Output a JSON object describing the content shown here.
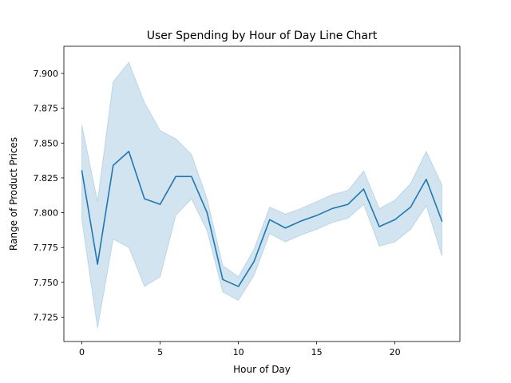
{
  "chart_data": {
    "type": "line",
    "title": "User Spending by Hour of Day Line Chart",
    "xlabel": "Hour of Day",
    "ylabel": "Range of Product Prices",
    "xlim": [
      -1.15,
      24.15
    ],
    "ylim": [
      7.7075,
      7.9195
    ],
    "x_ticks": [
      0,
      5,
      10,
      15,
      20
    ],
    "x_tick_labels": [
      "0",
      "5",
      "10",
      "15",
      "20"
    ],
    "y_ticks": [
      7.725,
      7.75,
      7.775,
      7.8,
      7.825,
      7.85,
      7.875,
      7.9
    ],
    "y_tick_labels": [
      "7.725",
      "7.750",
      "7.775",
      "7.800",
      "7.825",
      "7.850",
      "7.875",
      "7.900"
    ],
    "grid": false,
    "colors": {
      "line": "#1f77b4",
      "band": "#1f77b4"
    },
    "series": [
      {
        "x": [
          0,
          1,
          2,
          3,
          4,
          5,
          6,
          7,
          8,
          9,
          10,
          11,
          12,
          13,
          14,
          15,
          16,
          17,
          18,
          19,
          20,
          21,
          22,
          23
        ],
        "values": [
          7.83,
          7.763,
          7.834,
          7.844,
          7.81,
          7.806,
          7.826,
          7.826,
          7.8,
          7.752,
          7.747,
          7.765,
          7.795,
          7.789,
          7.794,
          7.798,
          7.803,
          7.806,
          7.817,
          7.79,
          7.795,
          7.804,
          7.824,
          7.794
        ],
        "lower": [
          7.795,
          7.717,
          7.781,
          7.775,
          7.747,
          7.754,
          7.798,
          7.81,
          7.787,
          7.743,
          7.737,
          7.755,
          7.785,
          7.779,
          7.784,
          7.788,
          7.793,
          7.796,
          7.806,
          7.776,
          7.779,
          7.788,
          7.805,
          7.769
        ],
        "upper": [
          7.863,
          7.808,
          7.894,
          7.908,
          7.879,
          7.859,
          7.853,
          7.842,
          7.81,
          7.762,
          7.754,
          7.774,
          7.804,
          7.799,
          7.803,
          7.808,
          7.813,
          7.816,
          7.83,
          7.803,
          7.809,
          7.821,
          7.844,
          7.82
        ]
      }
    ]
  }
}
